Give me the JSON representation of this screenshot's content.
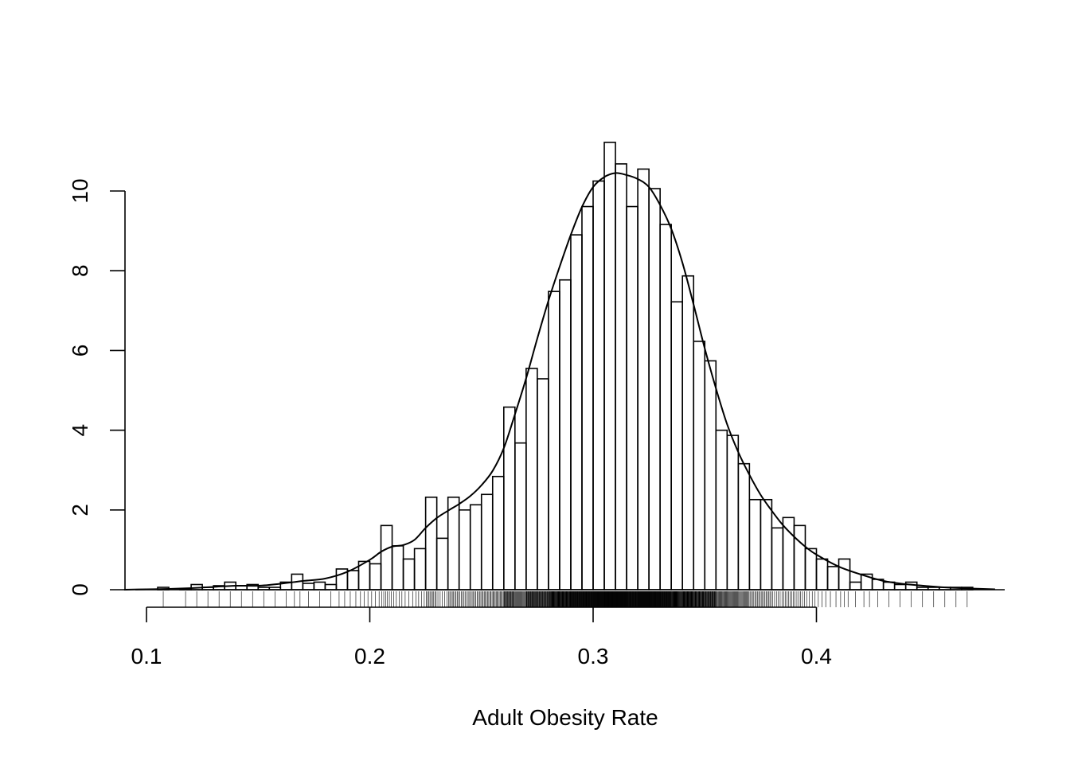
{
  "chart_data": {
    "type": "bar",
    "subtype": "histogram-with-density-and-rug",
    "title": "",
    "xlabel": "Adult Obesity Rate",
    "ylabel": "",
    "xlim": [
      0.09,
      0.48
    ],
    "ylim": [
      0,
      11.2
    ],
    "x_ticks": [
      0.1,
      0.2,
      0.3,
      0.4
    ],
    "x_tick_labels": [
      "0.1",
      "0.2",
      "0.3",
      "0.4"
    ],
    "y_ticks": [
      0,
      2,
      4,
      6,
      8,
      10
    ],
    "y_tick_labels": [
      "0",
      "2",
      "4",
      "6",
      "8",
      "10"
    ],
    "bin_width": 0.005,
    "bins_start": [
      0.105,
      0.11,
      0.115,
      0.12,
      0.125,
      0.13,
      0.135,
      0.14,
      0.145,
      0.15,
      0.155,
      0.16,
      0.165,
      0.17,
      0.175,
      0.18,
      0.185,
      0.19,
      0.195,
      0.2,
      0.205,
      0.21,
      0.215,
      0.22,
      0.225,
      0.23,
      0.235,
      0.24,
      0.245,
      0.25,
      0.255,
      0.26,
      0.265,
      0.27,
      0.275,
      0.28,
      0.285,
      0.29,
      0.295,
      0.3,
      0.305,
      0.31,
      0.315,
      0.32,
      0.325,
      0.33,
      0.335,
      0.34,
      0.345,
      0.35,
      0.355,
      0.36,
      0.365,
      0.37,
      0.375,
      0.38,
      0.385,
      0.39,
      0.395,
      0.4,
      0.405,
      0.41,
      0.415,
      0.42,
      0.425,
      0.43,
      0.435,
      0.44,
      0.445,
      0.45,
      0.455,
      0.46,
      0.465
    ],
    "values": [
      0.06,
      0.0,
      0.03,
      0.13,
      0.06,
      0.1,
      0.19,
      0.1,
      0.13,
      0.06,
      0.06,
      0.19,
      0.39,
      0.16,
      0.19,
      0.13,
      0.52,
      0.48,
      0.71,
      0.65,
      1.61,
      1.1,
      0.77,
      1.03,
      2.32,
      1.29,
      2.32,
      2.0,
      2.13,
      2.39,
      2.84,
      4.58,
      3.68,
      5.55,
      5.29,
      7.48,
      7.77,
      8.9,
      9.61,
      10.25,
      11.22,
      10.68,
      9.61,
      10.55,
      10.06,
      9.16,
      7.22,
      7.87,
      6.23,
      5.74,
      4.0,
      3.87,
      3.16,
      2.26,
      2.26,
      1.55,
      1.81,
      1.61,
      1.03,
      0.77,
      0.58,
      0.77,
      0.19,
      0.39,
      0.26,
      0.19,
      0.13,
      0.19,
      0.06,
      0.06,
      0.06,
      0.06,
      0.06
    ],
    "density": {
      "x": [
        0.09,
        0.1,
        0.11,
        0.12,
        0.13,
        0.14,
        0.15,
        0.16,
        0.17,
        0.18,
        0.19,
        0.2,
        0.205,
        0.21,
        0.215,
        0.22,
        0.225,
        0.23,
        0.235,
        0.24,
        0.245,
        0.25,
        0.255,
        0.26,
        0.265,
        0.27,
        0.275,
        0.28,
        0.285,
        0.29,
        0.295,
        0.3,
        0.305,
        0.31,
        0.315,
        0.32,
        0.325,
        0.33,
        0.335,
        0.34,
        0.345,
        0.35,
        0.355,
        0.36,
        0.365,
        0.37,
        0.375,
        0.38,
        0.385,
        0.39,
        0.395,
        0.4,
        0.41,
        0.42,
        0.43,
        0.44,
        0.45,
        0.46,
        0.48
      ],
      "y": [
        0.0,
        0.01,
        0.02,
        0.04,
        0.07,
        0.1,
        0.1,
        0.15,
        0.22,
        0.28,
        0.45,
        0.75,
        0.95,
        1.08,
        1.12,
        1.25,
        1.55,
        1.8,
        1.98,
        2.15,
        2.35,
        2.62,
        2.98,
        3.55,
        4.4,
        5.3,
        6.3,
        7.25,
        8.1,
        8.9,
        9.6,
        10.1,
        10.35,
        10.45,
        10.4,
        10.3,
        10.1,
        9.65,
        9.05,
        8.2,
        7.15,
        6.05,
        5.05,
        4.15,
        3.45,
        2.88,
        2.38,
        1.98,
        1.62,
        1.33,
        1.08,
        0.88,
        0.58,
        0.38,
        0.22,
        0.14,
        0.09,
        0.05,
        0.01
      ]
    }
  }
}
